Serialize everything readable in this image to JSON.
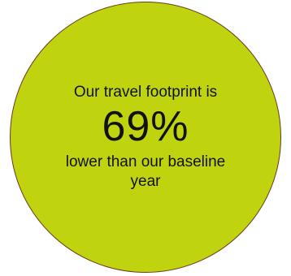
{
  "callout": {
    "intro_text": "Our travel footprint is",
    "stat_value": "69%",
    "outro_text": "lower than our baseline year"
  },
  "colors": {
    "circle_fill": "#bfd40e",
    "circle_border": "#6b3a1f",
    "text": "#111111"
  }
}
